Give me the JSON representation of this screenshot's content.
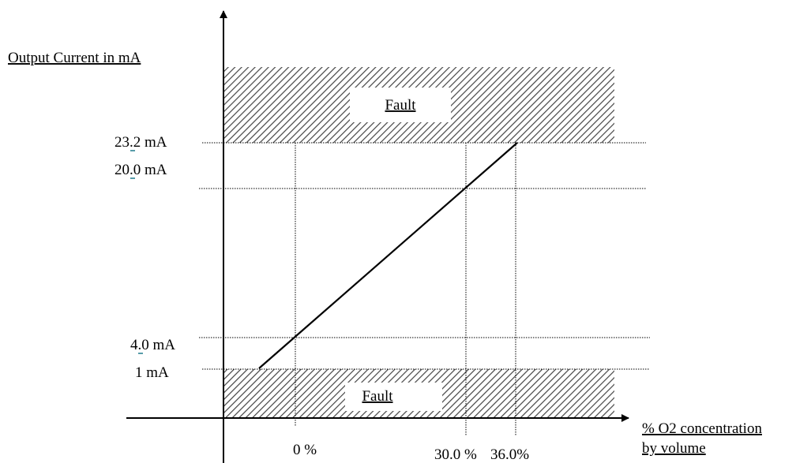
{
  "y_axis_title": "Output Current in mA",
  "x_axis_title_line1": "% O2 concentration",
  "x_axis_title_line2": "by volume",
  "fault_top_label": "Fault",
  "fault_bottom_label": "Fault",
  "y_ticks": [
    {
      "label": "23.2 mA",
      "value_mA": 23.2
    },
    {
      "label": "20.0 mA",
      "value_mA": 20.0
    },
    {
      "label": "4.0 mA",
      "value_mA": 4.0
    },
    {
      "label": "1 mA",
      "value_mA": 1
    }
  ],
  "x_ticks": [
    {
      "label": "0 %",
      "value_pct": 0
    },
    {
      "label": "30.0 %",
      "value_pct": 30.0
    },
    {
      "label": "36.0%",
      "value_pct": 36.0
    }
  ],
  "colors": {
    "line": "#000000",
    "hatch": "#555555",
    "mark_underline": "#1f7a8c"
  }
}
